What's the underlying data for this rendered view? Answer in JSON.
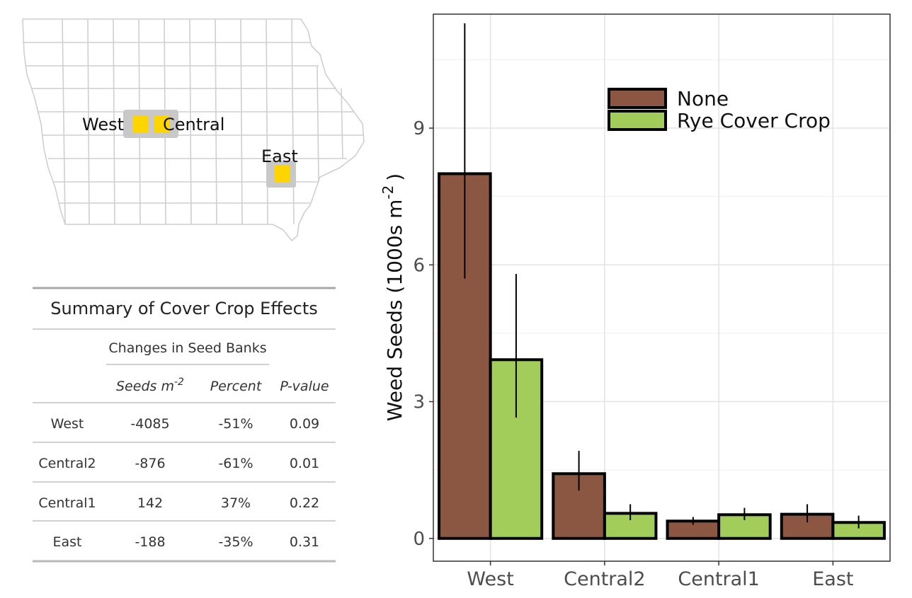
{
  "map": {
    "locations": [
      {
        "id": "west",
        "label": "West"
      },
      {
        "id": "central",
        "label": "Central"
      },
      {
        "id": "east",
        "label": "East"
      }
    ],
    "marker_color": "#FFD500"
  },
  "table": {
    "title": "Summary of Cover Crop Effects",
    "spanner": "Changes in Seed Banks",
    "col_seeds": "Seeds m",
    "col_seeds_exp": "-2",
    "col_percent": "Percent",
    "col_pvalue": "P-value",
    "rows": [
      {
        "site": "West",
        "seeds": "-4085",
        "percent": "-51%",
        "p": "0.09"
      },
      {
        "site": "Central2",
        "seeds": "-876",
        "percent": "-61%",
        "p": "0.01"
      },
      {
        "site": "Central1",
        "seeds": "142",
        "percent": "37%",
        "p": "0.22"
      },
      {
        "site": "East",
        "seeds": "-188",
        "percent": "-35%",
        "p": "0.31"
      }
    ]
  },
  "chart_data": {
    "type": "bar",
    "categories": [
      "West",
      "Central2",
      "Central1",
      "East"
    ],
    "series": [
      {
        "name": "None",
        "color": "#8B5742",
        "values": [
          8.0,
          1.42,
          0.38,
          0.53
        ],
        "err_low": [
          5.7,
          1.05,
          0.3,
          0.35
        ],
        "err_high": [
          11.3,
          1.92,
          0.47,
          0.75
        ]
      },
      {
        "name": "Rye Cover Crop",
        "color": "#A2CD5A",
        "values": [
          3.92,
          0.55,
          0.52,
          0.35
        ],
        "err_low": [
          2.65,
          0.4,
          0.4,
          0.22
        ],
        "err_high": [
          5.8,
          0.75,
          0.67,
          0.5
        ]
      }
    ],
    "ylabel_main": "Weed Seeds (1000s m",
    "ylabel_exp": "-2",
    "ylabel_close": ")",
    "yticks": [
      0,
      3,
      6,
      9
    ],
    "ylim": [
      -0.5,
      11.5
    ],
    "grid": true,
    "legend_position": "top-right"
  }
}
